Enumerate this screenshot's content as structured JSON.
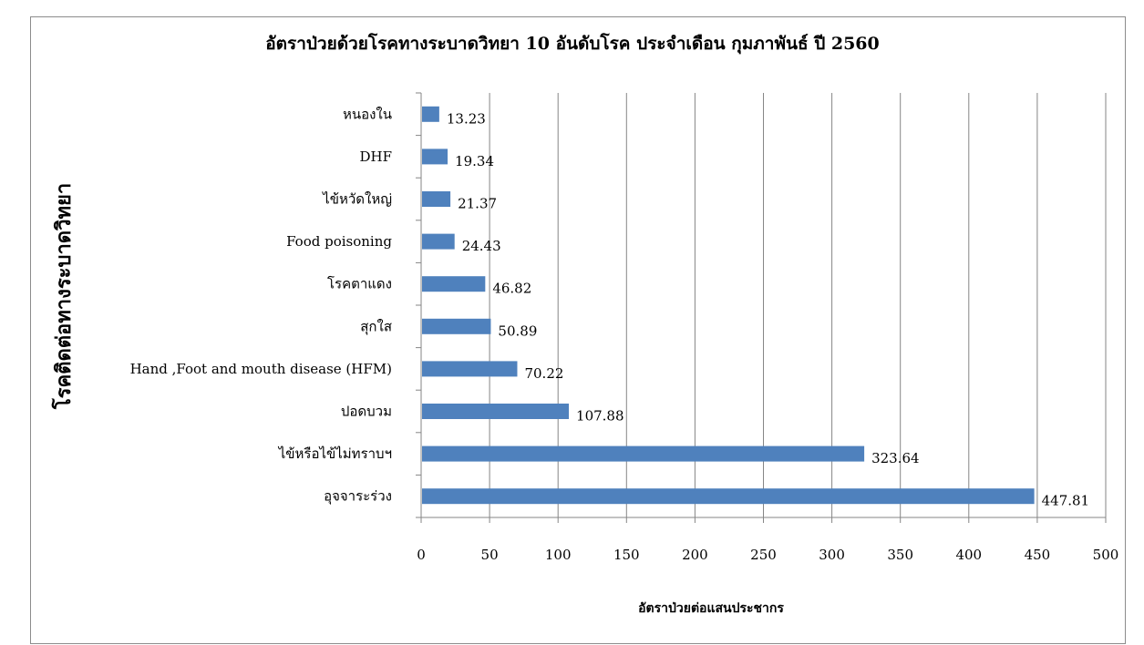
{
  "chart_data": {
    "type": "bar",
    "orientation": "horizontal",
    "title": "อัตราป่วยด้วยโรคทางระบาดวิทยา 10 อันดับโรค ประจำเดือน กุมภาพันธ์ ปี 2560",
    "xlabel": "อัตราป่วยต่อแสนประชากร",
    "ylabel": "โรคติดต่อทางระบาดวิทยา",
    "categories": [
      "หนองใน",
      "DHF",
      "ไข้หวัดใหญ่",
      "Food poisoning",
      "โรคตาแดง",
      "สุกใส",
      "Hand ,Foot and mouth disease (HFM)",
      "ปอดบวม",
      "ไข้หรือไข้ไม่ทราบฯ",
      "อุจจาระร่วง"
    ],
    "values": [
      13.23,
      19.34,
      21.37,
      24.43,
      46.82,
      50.89,
      70.22,
      107.88,
      323.64,
      447.81
    ],
    "value_labels": [
      "13.23",
      "19.34",
      "21.37",
      "24.43",
      "46.82",
      "50.89",
      "70.22",
      "107.88",
      "323.64",
      "447.81"
    ],
    "xlim": [
      0,
      500
    ],
    "xticks": [
      "0",
      "50",
      "100",
      "150",
      "200",
      "250",
      "300",
      "350",
      "400",
      "450",
      "500"
    ],
    "grid": true,
    "legend": "none",
    "bar_color": "#4f81bd"
  }
}
